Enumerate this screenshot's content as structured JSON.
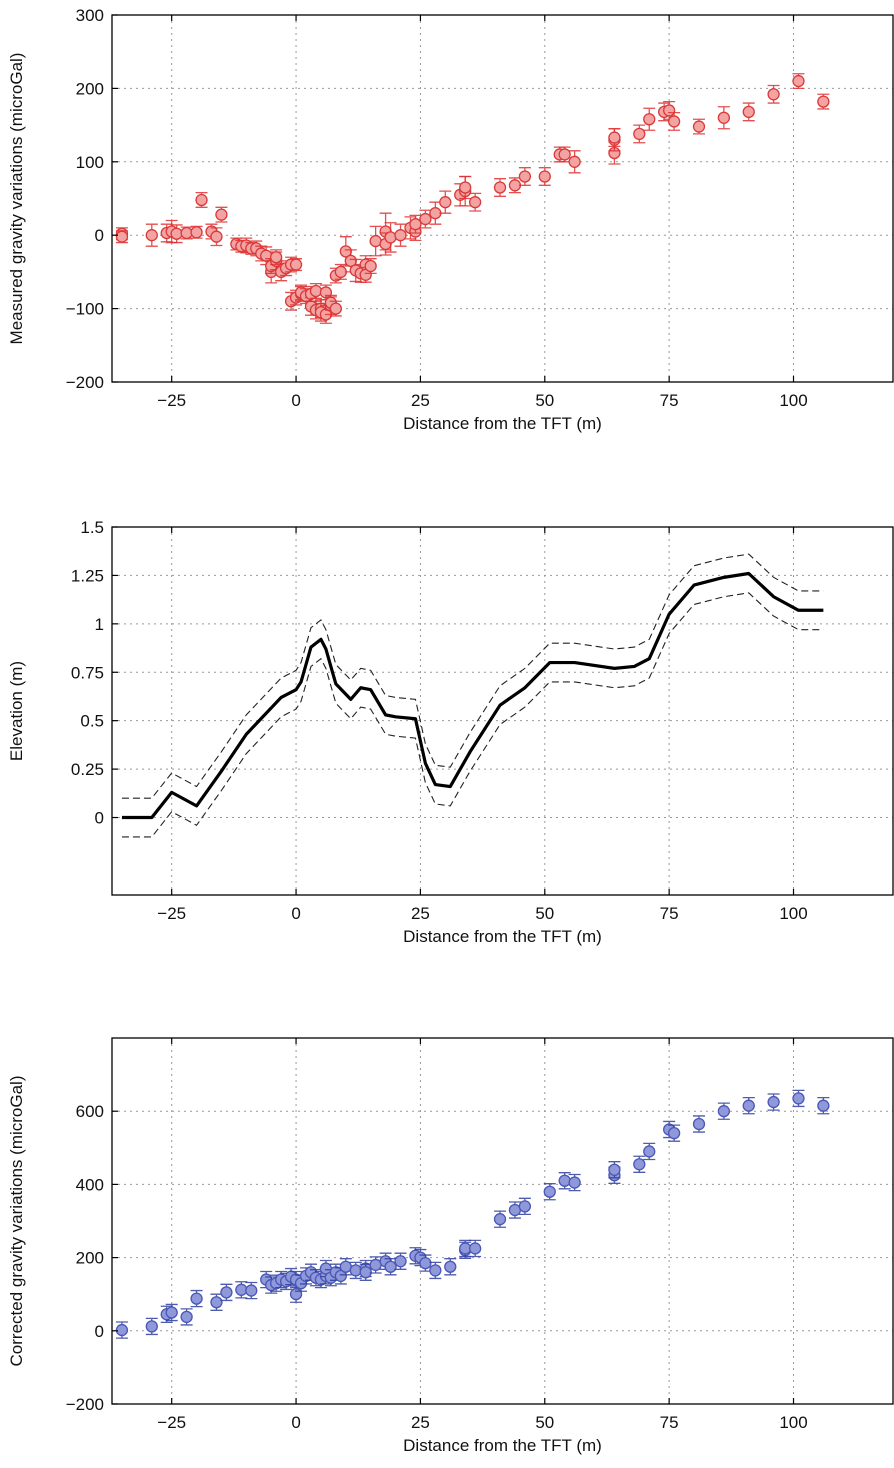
{
  "chart_data": [
    {
      "type": "scatter",
      "title": "",
      "xlabel": "Distance from the TFT (m)",
      "ylabel": "Measured gravity variations (microGal)",
      "xlim": [
        -37,
        120
      ],
      "ylim": [
        -200,
        300
      ],
      "xticks": [
        -25,
        0,
        25,
        50,
        75,
        100
      ],
      "xtick_labels": [
        "−25",
        "0",
        "25",
        "50",
        "75",
        "100"
      ],
      "yticks": [
        -200,
        -100,
        0,
        100,
        200,
        300
      ],
      "ytick_labels": [
        "−200",
        "−100",
        "0",
        "100",
        "200",
        "300"
      ],
      "grid": true,
      "colors": {
        "marker_fill": "#f4a3a3",
        "marker_edge": "#d83a3a",
        "errorbar": "#e03030"
      },
      "series": [
        {
          "x": [
            -35,
            -35,
            -29,
            -26,
            -25,
            -24,
            -22,
            -20,
            -19,
            -17,
            -16,
            -15,
            -12,
            -11,
            -10,
            -9,
            -8,
            -7,
            -6,
            -5,
            -5,
            -4,
            -4,
            -3,
            -2,
            -1,
            -1,
            0,
            0,
            1,
            1,
            2,
            3,
            3,
            4,
            4,
            5,
            5,
            6,
            6,
            7,
            7,
            8,
            8,
            9,
            10,
            11,
            12,
            13,
            14,
            14,
            15,
            16,
            18,
            18,
            19,
            21,
            23,
            24,
            24,
            26,
            28,
            30,
            33,
            34,
            34,
            36,
            41,
            44,
            46,
            50,
            53,
            54,
            56,
            64,
            64,
            64,
            69,
            71,
            74,
            75,
            76,
            81,
            86,
            91,
            96,
            101,
            106
          ],
          "y": [
            2,
            -2,
            0,
            3,
            5,
            2,
            3,
            4,
            48,
            5,
            -2,
            28,
            -12,
            -15,
            -14,
            -18,
            -18,
            -25,
            -28,
            -50,
            -42,
            -35,
            -30,
            -50,
            -45,
            -40,
            -90,
            -85,
            -40,
            -80,
            -78,
            -83,
            -97,
            -80,
            -102,
            -76,
            -100,
            -105,
            -78,
            -108,
            -96,
            -92,
            -100,
            -55,
            -50,
            -22,
            -35,
            -48,
            -52,
            -40,
            -54,
            -42,
            -8,
            5,
            -12,
            -3,
            0,
            10,
            5,
            15,
            22,
            30,
            45,
            55,
            60,
            65,
            45,
            65,
            68,
            80,
            80,
            110,
            110,
            100,
            112,
            130,
            133,
            138,
            158,
            168,
            170,
            155,
            148,
            160,
            168,
            192,
            210,
            182
          ],
          "err": [
            8,
            8,
            15,
            12,
            15,
            12,
            8,
            8,
            10,
            10,
            12,
            10,
            8,
            8,
            10,
            8,
            10,
            10,
            12,
            15,
            10,
            12,
            10,
            12,
            10,
            10,
            12,
            10,
            8,
            10,
            10,
            10,
            12,
            10,
            12,
            10,
            12,
            12,
            10,
            12,
            12,
            10,
            10,
            10,
            10,
            20,
            15,
            15,
            12,
            12,
            10,
            10,
            20,
            25,
            15,
            20,
            15,
            15,
            12,
            12,
            12,
            15,
            15,
            15,
            20,
            15,
            12,
            12,
            10,
            12,
            12,
            10,
            10,
            15,
            15,
            15,
            12,
            12,
            15,
            12,
            12,
            12,
            10,
            15,
            12,
            12,
            10,
            10
          ]
        }
      ]
    },
    {
      "type": "line",
      "title": "",
      "xlabel": "Distance from the TFT (m)",
      "ylabel": "Elevation (m)",
      "xlim": [
        -37,
        120
      ],
      "ylim": [
        -0.4,
        1.5
      ],
      "xticks": [
        -25,
        0,
        25,
        50,
        75,
        100
      ],
      "xtick_labels": [
        "−25",
        "0",
        "25",
        "50",
        "75",
        "100"
      ],
      "yticks": [
        0,
        0.25,
        0.5,
        0.75,
        1,
        1.25,
        1.5
      ],
      "ytick_labels": [
        "0",
        "0.25",
        "0.5",
        "0.75",
        "1",
        "1.25",
        "1.5"
      ],
      "grid": true,
      "colors": {
        "line": "#000000",
        "band": "#222222"
      },
      "x": [
        -35,
        -29,
        -25,
        -20,
        -15,
        -10,
        -3,
        0,
        1,
        3,
        5,
        6,
        8,
        11,
        13,
        15,
        18,
        20,
        24,
        26,
        28,
        31,
        35,
        41,
        46,
        51,
        56,
        64,
        68,
        71,
        75,
        80,
        86,
        91,
        96,
        101,
        106
      ],
      "series": [
        {
          "line_style": "solid",
          "values": [
            0,
            0,
            0.13,
            0.06,
            0.24,
            0.43,
            0.62,
            0.66,
            0.7,
            0.88,
            0.92,
            0.87,
            0.69,
            0.61,
            0.67,
            0.66,
            0.53,
            0.52,
            0.51,
            0.28,
            0.17,
            0.16,
            0.34,
            0.58,
            0.67,
            0.8,
            0.8,
            0.77,
            0.78,
            0.82,
            1.05,
            1.2,
            1.24,
            1.26,
            1.14,
            1.07,
            1.07
          ]
        },
        {
          "line_style": "dashed",
          "values": [
            0.1,
            0.1,
            0.23,
            0.16,
            0.34,
            0.53,
            0.72,
            0.76,
            0.8,
            0.98,
            1.02,
            0.97,
            0.79,
            0.71,
            0.77,
            0.76,
            0.63,
            0.62,
            0.61,
            0.38,
            0.27,
            0.26,
            0.44,
            0.68,
            0.77,
            0.9,
            0.9,
            0.87,
            0.88,
            0.92,
            1.15,
            1.3,
            1.34,
            1.36,
            1.24,
            1.17,
            1.17
          ]
        },
        {
          "line_style": "dashed",
          "values": [
            -0.1,
            -0.1,
            0.03,
            -0.04,
            0.14,
            0.33,
            0.52,
            0.56,
            0.6,
            0.78,
            0.82,
            0.77,
            0.59,
            0.51,
            0.57,
            0.56,
            0.43,
            0.42,
            0.41,
            0.18,
            0.07,
            0.06,
            0.24,
            0.48,
            0.57,
            0.7,
            0.7,
            0.67,
            0.68,
            0.72,
            0.95,
            1.1,
            1.14,
            1.16,
            1.04,
            0.97,
            0.97
          ]
        }
      ]
    },
    {
      "type": "scatter",
      "title": "",
      "xlabel": "Distance from the TFT (m)",
      "ylabel": "Corrected gravity variations (microGal)",
      "xlim": [
        -37,
        120
      ],
      "ylim": [
        -200,
        800
      ],
      "xticks": [
        -25,
        0,
        25,
        50,
        75,
        100
      ],
      "xtick_labels": [
        "−25",
        "0",
        "25",
        "50",
        "75",
        "100"
      ],
      "yticks": [
        -200,
        0,
        200,
        400,
        600
      ],
      "ytick_labels": [
        "−200",
        "0",
        "200",
        "400",
        "600"
      ],
      "grid": true,
      "colors": {
        "marker_fill": "#8f98d8",
        "marker_edge": "#4a56b8",
        "errorbar": "#2e3f9e"
      },
      "series": [
        {
          "x": [
            -35,
            -29,
            -26,
            -25,
            -22,
            -20,
            -16,
            -14,
            -11,
            -9,
            -6,
            -5,
            -4,
            -3,
            -2,
            -1,
            0,
            0,
            1,
            2,
            3,
            4,
            5,
            6,
            6,
            7,
            8,
            9,
            10,
            12,
            14,
            14,
            16,
            18,
            19,
            21,
            24,
            25,
            26,
            28,
            31,
            34,
            34,
            36,
            41,
            44,
            46,
            51,
            54,
            56,
            64,
            64,
            69,
            71,
            75,
            76,
            81,
            86,
            91,
            96,
            101,
            106
          ],
          "y": [
            2,
            12,
            45,
            50,
            38,
            88,
            78,
            105,
            112,
            110,
            140,
            125,
            130,
            140,
            135,
            148,
            140,
            100,
            130,
            150,
            160,
            145,
            140,
            150,
            170,
            145,
            160,
            150,
            175,
            165,
            170,
            160,
            180,
            190,
            175,
            190,
            205,
            200,
            185,
            165,
            175,
            220,
            225,
            225,
            305,
            330,
            340,
            380,
            410,
            405,
            425,
            440,
            455,
            490,
            550,
            540,
            565,
            600,
            615,
            625,
            635,
            615
          ]
        }
      ]
    }
  ]
}
